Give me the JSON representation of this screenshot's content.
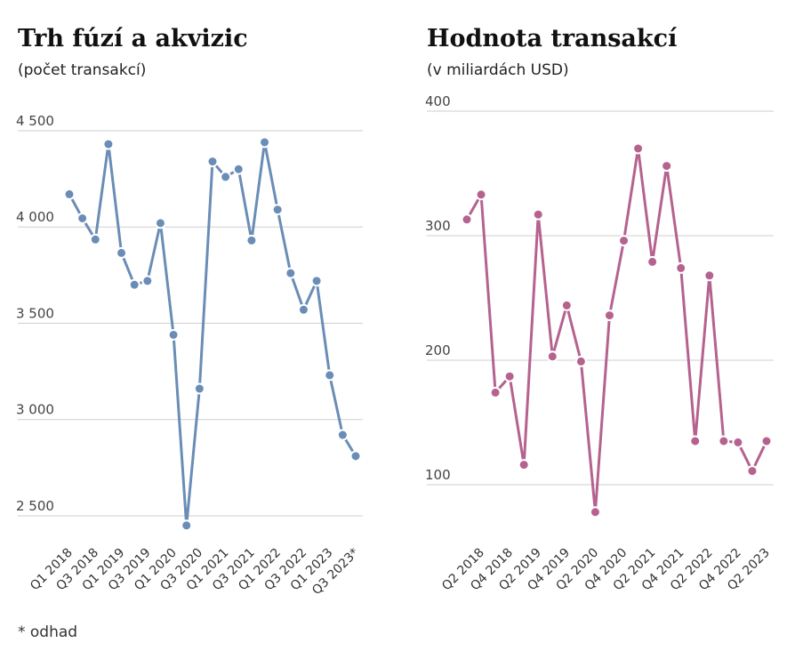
{
  "chart_data": [
    {
      "type": "line",
      "title": "Trh fúzí a akvizic",
      "subtitle": "(počet transakcí)",
      "categories": [
        "Q1 2018",
        null,
        "Q3 2018",
        null,
        "Q1 2019",
        null,
        "Q3 2019",
        null,
        "Q1 2020",
        null,
        "Q3 2020",
        null,
        "Q1 2021",
        null,
        "Q3 2021",
        null,
        "Q1 2022",
        null,
        "Q3 2022",
        null,
        "Q1 2023",
        null,
        "Q3 2023*"
      ],
      "series": [
        {
          "name": "počet transakcí",
          "color": "#6a8db6",
          "values": [
            4170,
            4045,
            3935,
            4430,
            3865,
            3700,
            3720,
            4020,
            3440,
            2450,
            3160,
            4340,
            4260,
            4300,
            3930,
            4440,
            4090,
            3760,
            3570,
            3720,
            3230,
            2920,
            2810
          ]
        }
      ],
      "ylim": [
        2400,
        4600
      ],
      "yticks": [
        {
          "value": 2500,
          "label": "2 500"
        },
        {
          "value": 3000,
          "label": "3 000"
        },
        {
          "value": 3500,
          "label": "3 500"
        },
        {
          "value": 4000,
          "label": "4 000"
        },
        {
          "value": 4500,
          "label": "4 500"
        }
      ],
      "grid": true,
      "note": "* odhad"
    },
    {
      "type": "line",
      "title": "Hodnota transakcí",
      "subtitle": "(v miliardách USD)",
      "categories": [
        null,
        "Q2 2018",
        null,
        "Q4 2018",
        null,
        "Q2 2019",
        null,
        "Q4 2019",
        null,
        "Q2 2020",
        null,
        "Q4 2020",
        null,
        "Q2 2021",
        null,
        "Q4 2021",
        null,
        "Q2 2022",
        null,
        "Q4 2022",
        null,
        "Q2 2023"
      ],
      "series": [
        {
          "name": "v miliardách USD",
          "color": "#b5628f",
          "values": [
            313,
            333,
            174,
            187,
            116,
            317,
            203,
            244,
            199,
            78,
            236,
            296,
            370,
            279,
            356,
            274,
            135,
            268,
            135,
            134,
            111,
            135
          ]
        }
      ],
      "ylim": [
        70,
        400
      ],
      "yticks": [
        100,
        200,
        300,
        400
      ],
      "grid": true
    }
  ]
}
